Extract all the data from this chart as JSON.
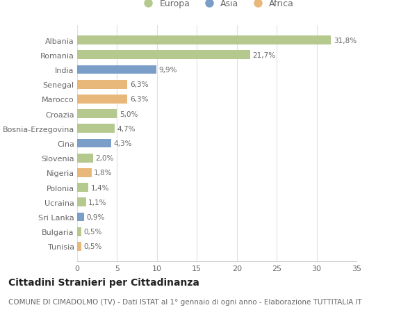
{
  "countries": [
    "Albania",
    "Romania",
    "India",
    "Senegal",
    "Marocco",
    "Croazia",
    "Bosnia-Erzegovina",
    "Cina",
    "Slovenia",
    "Nigeria",
    "Polonia",
    "Ucraina",
    "Sri Lanka",
    "Bulgaria",
    "Tunisia"
  ],
  "values": [
    31.8,
    21.7,
    9.9,
    6.3,
    6.3,
    5.0,
    4.7,
    4.3,
    2.0,
    1.8,
    1.4,
    1.1,
    0.9,
    0.5,
    0.5
  ],
  "continents": [
    "Europa",
    "Europa",
    "Asia",
    "Africa",
    "Africa",
    "Europa",
    "Europa",
    "Asia",
    "Europa",
    "Africa",
    "Europa",
    "Europa",
    "Asia",
    "Europa",
    "Africa"
  ],
  "labels": [
    "31,8%",
    "21,7%",
    "9,9%",
    "6,3%",
    "6,3%",
    "5,0%",
    "4,7%",
    "4,3%",
    "2,0%",
    "1,8%",
    "1,4%",
    "1,1%",
    "0,9%",
    "0,5%",
    "0,5%"
  ],
  "colors": {
    "Europa": "#b5c98e",
    "Asia": "#7b9ec9",
    "Africa": "#e8b87a"
  },
  "title": "Cittadini Stranieri per Cittadinanza",
  "subtitle": "COMUNE DI CIMADOLMO (TV) - Dati ISTAT al 1° gennaio di ogni anno - Elaborazione TUTTITALIA.IT",
  "xlim": [
    0,
    35
  ],
  "xticks": [
    0,
    5,
    10,
    15,
    20,
    25,
    30,
    35
  ],
  "background_color": "#ffffff",
  "grid_color": "#e0e0e0",
  "bar_height": 0.6,
  "title_fontsize": 10,
  "subtitle_fontsize": 7.5,
  "label_fontsize": 7.5,
  "tick_fontsize": 8,
  "legend_fontsize": 9
}
